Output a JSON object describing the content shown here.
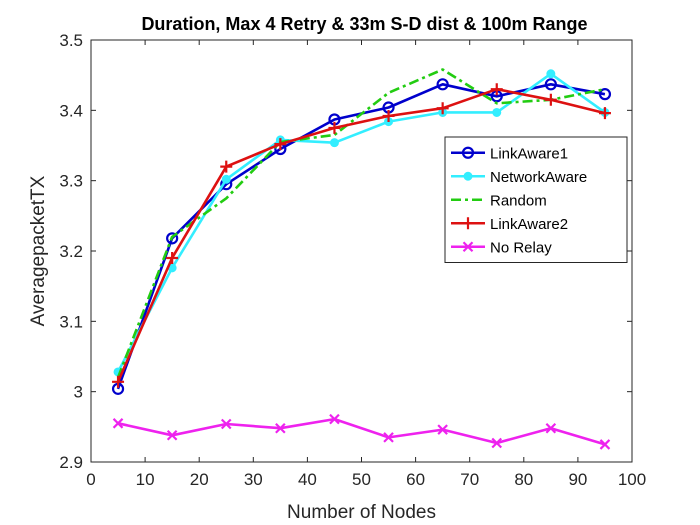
{
  "chart_data": {
    "type": "line",
    "title": "Duration, Max 4 Retry & 33m S-D dist & 100m Range",
    "xlabel": "Number of Nodes",
    "ylabel": "AveragepacketTX",
    "xlim": [
      0,
      100
    ],
    "ylim": [
      2.9,
      3.5
    ],
    "xticks": [
      "0",
      "10",
      "20",
      "30",
      "40",
      "50",
      "60",
      "70",
      "80",
      "90",
      "100"
    ],
    "yticks": [
      "2.9",
      "3",
      "3.1",
      "3.2",
      "3.3",
      "3.4",
      "3.5"
    ],
    "grid": false,
    "legend_position": "right",
    "x": [
      5,
      15,
      25,
      35,
      45,
      55,
      65,
      75,
      85,
      95
    ],
    "series": [
      {
        "name": "LinkAware1",
        "color": "#0000cc",
        "marker": "circle",
        "dash": "solid",
        "values": [
          3.004,
          3.218,
          3.295,
          3.345,
          3.387,
          3.404,
          3.437,
          3.42,
          3.437,
          3.423
        ]
      },
      {
        "name": "NetworkAware",
        "color": "#33eeff",
        "marker": "dot",
        "dash": "solid",
        "values": [
          3.028,
          3.176,
          3.302,
          3.358,
          3.354,
          3.384,
          3.397,
          3.397,
          3.452,
          3.397
        ]
      },
      {
        "name": "Random",
        "color": "#22cc11",
        "marker": "none",
        "dash": "dashdot",
        "values": [
          3.02,
          3.22,
          3.275,
          3.355,
          3.365,
          3.425,
          3.458,
          3.41,
          3.415,
          3.43
        ]
      },
      {
        "name": "LinkAware2",
        "color": "#dd1111",
        "marker": "plus",
        "dash": "solid",
        "values": [
          3.014,
          3.19,
          3.32,
          3.352,
          3.375,
          3.392,
          3.403,
          3.43,
          3.415,
          3.396
        ]
      },
      {
        "name": "No Relay",
        "color": "#ee22ee",
        "marker": "x",
        "dash": "solid",
        "values": [
          2.955,
          2.938,
          2.954,
          2.948,
          2.961,
          2.935,
          2.946,
          2.927,
          2.948,
          2.925
        ]
      }
    ]
  }
}
